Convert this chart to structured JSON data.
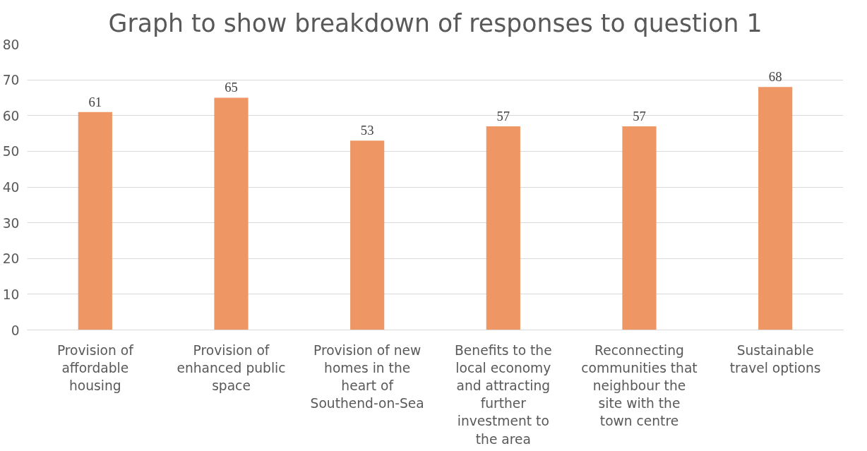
{
  "chart_data": {
    "type": "bar",
    "title": "Graph to show breakdown of responses to question 1",
    "categories": [
      "Provision of affordable housing",
      "Provision of enhanced public space",
      "Provision of new homes in the heart of Southend-on-Sea",
      "Benefits to the local economy and attracting further investment to the area",
      "Reconnecting communities that neighbour the site with the town centre",
      "Sustainable travel options"
    ],
    "values": [
      61,
      65,
      53,
      57,
      57,
      68
    ],
    "color": "#ee9664",
    "ylim": [
      0,
      80
    ],
    "yticks": [
      0,
      10,
      20,
      30,
      40,
      50,
      60,
      70,
      80
    ],
    "grid": "y",
    "data_labels": true
  }
}
